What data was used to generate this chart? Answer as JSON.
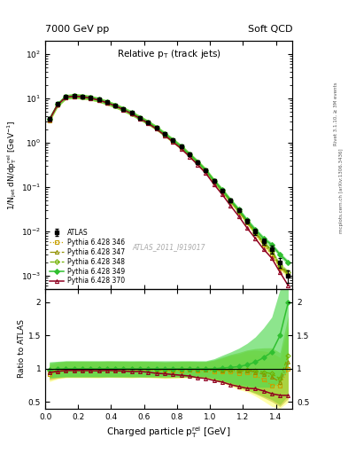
{
  "title_left": "7000 GeV pp",
  "title_right": "Soft QCD",
  "plot_title": "Relative p$_{\\rm T}$ (track jets)",
  "xlabel": "Charged particle p$_{\\rm T}^{\\rm rel}$ [GeV]",
  "ylabel_main": "1/N$_{\\rm jet}$ dN/dp$_{\\rm T}^{\\rm rel}$ [GeV$^{-1}$]",
  "ylabel_ratio": "Ratio to ATLAS",
  "watermark": "ATLAS_2011_I919017",
  "right_label1": "Rivet 3.1.10, ≥ 3M events",
  "right_label2": "mcplots.cern.ch [arXiv:1306.3436]",
  "x_data": [
    0.025,
    0.075,
    0.125,
    0.175,
    0.225,
    0.275,
    0.325,
    0.375,
    0.425,
    0.475,
    0.525,
    0.575,
    0.625,
    0.675,
    0.725,
    0.775,
    0.825,
    0.875,
    0.925,
    0.975,
    1.025,
    1.075,
    1.125,
    1.175,
    1.225,
    1.275,
    1.325,
    1.375,
    1.425,
    1.475
  ],
  "atlas_y": [
    3.5,
    7.5,
    11.0,
    11.5,
    11.2,
    10.5,
    9.5,
    8.2,
    7.0,
    5.8,
    4.7,
    3.7,
    2.9,
    2.2,
    1.6,
    1.15,
    0.82,
    0.55,
    0.37,
    0.24,
    0.14,
    0.085,
    0.05,
    0.03,
    0.017,
    0.01,
    0.006,
    0.004,
    0.002,
    0.001
  ],
  "atlas_yerr": [
    0.3,
    0.4,
    0.5,
    0.5,
    0.5,
    0.4,
    0.4,
    0.35,
    0.3,
    0.25,
    0.2,
    0.16,
    0.13,
    0.1,
    0.08,
    0.06,
    0.04,
    0.03,
    0.02,
    0.015,
    0.01,
    0.007,
    0.005,
    0.003,
    0.002,
    0.0015,
    0.001,
    0.0008,
    0.0005,
    0.0003
  ],
  "py346_y": [
    3.2,
    7.2,
    10.8,
    11.3,
    11.0,
    10.3,
    9.3,
    8.1,
    6.9,
    5.7,
    4.6,
    3.65,
    2.85,
    2.15,
    1.55,
    1.12,
    0.8,
    0.54,
    0.36,
    0.235,
    0.135,
    0.082,
    0.048,
    0.028,
    0.016,
    0.009,
    0.005,
    0.003,
    0.0015,
    0.001
  ],
  "py347_y": [
    3.3,
    7.3,
    10.9,
    11.4,
    11.1,
    10.4,
    9.4,
    8.15,
    6.95,
    5.75,
    4.65,
    3.67,
    2.87,
    2.17,
    1.57,
    1.13,
    0.81,
    0.545,
    0.365,
    0.237,
    0.137,
    0.083,
    0.049,
    0.029,
    0.0165,
    0.0095,
    0.0055,
    0.0035,
    0.0016,
    0.0011
  ],
  "py348_y": [
    3.4,
    7.4,
    10.95,
    11.45,
    11.15,
    10.45,
    9.45,
    8.17,
    6.97,
    5.77,
    4.67,
    3.68,
    2.88,
    2.18,
    1.58,
    1.14,
    0.815,
    0.547,
    0.367,
    0.238,
    0.138,
    0.084,
    0.0495,
    0.0295,
    0.0167,
    0.0097,
    0.0057,
    0.0037,
    0.0017,
    0.0012
  ],
  "py349_y": [
    3.45,
    7.45,
    11.0,
    11.5,
    11.2,
    10.5,
    9.5,
    8.2,
    7.0,
    5.8,
    4.7,
    3.7,
    2.9,
    2.2,
    1.6,
    1.15,
    0.82,
    0.55,
    0.37,
    0.24,
    0.14,
    0.086,
    0.051,
    0.031,
    0.018,
    0.011,
    0.007,
    0.005,
    0.003,
    0.002
  ],
  "py370_y": [
    3.3,
    7.2,
    10.7,
    11.2,
    10.9,
    10.2,
    9.2,
    8.0,
    6.8,
    5.6,
    4.5,
    3.55,
    2.75,
    2.05,
    1.48,
    1.05,
    0.74,
    0.49,
    0.32,
    0.205,
    0.115,
    0.068,
    0.038,
    0.022,
    0.012,
    0.007,
    0.004,
    0.0025,
    0.0012,
    0.0006
  ],
  "color_346": "#c8a000",
  "color_347": "#909000",
  "color_348": "#70b000",
  "color_349": "#30c030",
  "color_370": "#900020",
  "color_atlas": "#000000",
  "band_346_color": "#ffff80",
  "band_347_color": "#c8c840",
  "band_348_color": "#90d030",
  "band_349_color": "#50d850",
  "xlim": [
    0.0,
    1.5
  ],
  "ylim_main": [
    0.0005,
    200
  ],
  "ylim_ratio": [
    0.4,
    2.2
  ],
  "ratio_yticks": [
    0.5,
    1.0,
    1.5,
    2.0
  ],
  "ratio_yticklabels": [
    "0.5",
    "1",
    "1.5",
    "2"
  ]
}
